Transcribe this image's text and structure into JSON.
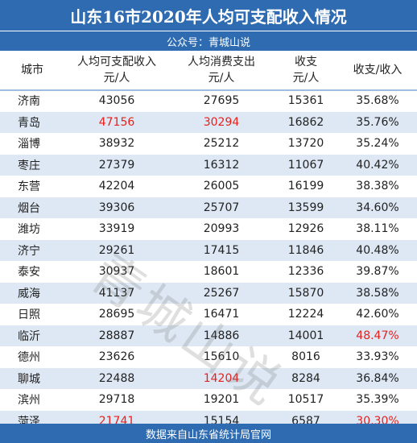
{
  "title": "山东16市2020年人均可支配收入情况",
  "subtitle": "公众号：青城山说",
  "headers": {
    "city": "城市",
    "income": [
      "人均可支配收入",
      "元/人"
    ],
    "consumption": [
      "人均消费支出",
      "元/人"
    ],
    "balance": [
      "收支",
      "元/人"
    ],
    "ratio": "收支/收入"
  },
  "rows": [
    {
      "city": "济南",
      "income": "43056",
      "consumption": "27695",
      "balance": "15361",
      "ratio": "35.68%"
    },
    {
      "city": "青岛",
      "income": "47156",
      "consumption": "30294",
      "balance": "16862",
      "ratio": "35.76%"
    },
    {
      "city": "淄博",
      "income": "38932",
      "consumption": "25212",
      "balance": "13720",
      "ratio": "35.24%"
    },
    {
      "city": "枣庄",
      "income": "27379",
      "consumption": "16312",
      "balance": "11067",
      "ratio": "40.42%"
    },
    {
      "city": "东营",
      "income": "42204",
      "consumption": "26005",
      "balance": "16199",
      "ratio": "38.38%"
    },
    {
      "city": "烟台",
      "income": "39306",
      "consumption": "25707",
      "balance": "13599",
      "ratio": "34.60%"
    },
    {
      "city": "潍坊",
      "income": "33919",
      "consumption": "20993",
      "balance": "12926",
      "ratio": "38.11%"
    },
    {
      "city": "济宁",
      "income": "29261",
      "consumption": "17415",
      "balance": "11846",
      "ratio": "40.48%"
    },
    {
      "city": "泰安",
      "income": "30937",
      "consumption": "18601",
      "balance": "12336",
      "ratio": "39.87%"
    },
    {
      "city": "威海",
      "income": "41137",
      "consumption": "25267",
      "balance": "15870",
      "ratio": "38.58%"
    },
    {
      "city": "日照",
      "income": "28695",
      "consumption": "16471",
      "balance": "12224",
      "ratio": "42.60%"
    },
    {
      "city": "临沂",
      "income": "28887",
      "consumption": "14886",
      "balance": "14001",
      "ratio": "48.47%"
    },
    {
      "city": "德州",
      "income": "23626",
      "consumption": "15610",
      "balance": "8016",
      "ratio": "33.93%"
    },
    {
      "city": "聊城",
      "income": "22488",
      "consumption": "14204",
      "balance": "8284",
      "ratio": "36.84%"
    },
    {
      "city": "滨州",
      "income": "29718",
      "consumption": "19201",
      "balance": "10517",
      "ratio": "35.39%"
    },
    {
      "city": "菏泽",
      "income": "21741",
      "consumption": "15154",
      "balance": "6587",
      "ratio": "30.30%"
    }
  ],
  "highlight_color": "#e8201c",
  "highlights": {
    "income_max": "47156",
    "income_min": "21741",
    "consumption_max": "30294",
    "consumption_min": "14204",
    "ratio_max": "48.47%",
    "ratio_min": "30.30%"
  },
  "watermark": "青城山说",
  "footer": "数据来自山东省统计局官网"
}
